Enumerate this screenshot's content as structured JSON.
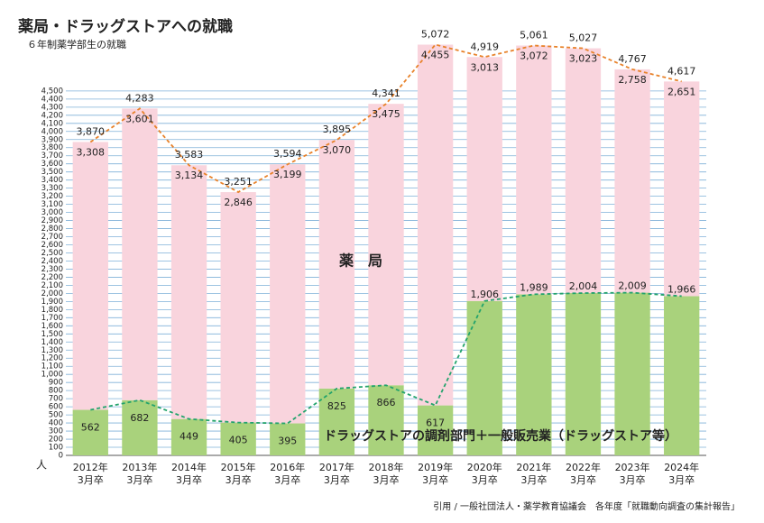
{
  "chart_data": {
    "type": "stacked_bar",
    "title": "薬局・ドラッグストアへの就職",
    "subtitle": "６年制薬学部生の就職",
    "ylabel": "人",
    "source": "引用 / 一般社団法人・薬学教育協議会　各年度「就職動向調査の集計報告」",
    "categories": [
      "2012年3月卒",
      "2013年3月卒",
      "2014年3月卒",
      "2015年3月卒",
      "2016年3月卒",
      "2017年3月卒",
      "2018年3月卒",
      "2019年3月卒",
      "2020年3月卒",
      "2021年3月卒",
      "2022年3月卒",
      "2023年3月卒",
      "2024年3月卒"
    ],
    "series": [
      {
        "name": "ドラッグストアの調剤部門＋一般販売業（ドラッグストア等）",
        "color": "#a9d27c",
        "line_color": "#23a36c",
        "values": [
          562,
          682,
          449,
          405,
          395,
          825,
          866,
          617,
          1906,
          1989,
          2004,
          2009,
          1966
        ],
        "value_labels": [
          "562",
          "682",
          "449",
          "405",
          "395",
          "825",
          "866",
          "617",
          "1,906",
          "1,989",
          "2,004",
          "2,009",
          "1,966"
        ]
      },
      {
        "name": "薬　局",
        "color": "#f9d4dd",
        "values": [
          3308,
          3601,
          3134,
          2846,
          3199,
          3070,
          3475,
          4455,
          3013,
          3072,
          3023,
          2758,
          2651
        ],
        "value_labels": [
          "3,308",
          "3,601",
          "3,134",
          "2,846",
          "3,199",
          "3,070",
          "3,475",
          "4,455",
          "3,013",
          "3,072",
          "3,023",
          "2,758",
          "2,651"
        ]
      }
    ],
    "totals": {
      "line_color": "#e8822a",
      "values": [
        3870,
        4283,
        3583,
        3251,
        3594,
        3895,
        4341,
        5072,
        4919,
        5061,
        5027,
        4767,
        4617
      ],
      "value_labels": [
        "3,870",
        "4,283",
        "3,583",
        "3,251",
        "3,594",
        "3,895",
        "4,341",
        "5,072",
        "4,919",
        "5,061",
        "5,027",
        "4,767",
        "4,617"
      ]
    },
    "ylim": [
      0,
      5100
    ],
    "yticks": [
      0,
      100,
      200,
      300,
      400,
      500,
      600,
      700,
      800,
      900,
      {
        "value": 1000,
        "label": "1,000"
      },
      {
        "value": 1100,
        "label": "1,100"
      },
      {
        "value": 1200,
        "label": "1,200"
      },
      {
        "value": 1300,
        "label": "1,300"
      },
      {
        "value": 1400,
        "label": "1,400"
      },
      {
        "value": 1500,
        "label": "1,500"
      },
      {
        "value": 1600,
        "label": "1,600"
      },
      {
        "value": 1700,
        "label": "1,700"
      },
      {
        "value": 1800,
        "label": "1,800"
      },
      {
        "value": 1900,
        "label": "1,900"
      },
      {
        "value": 2000,
        "label": "2,000"
      },
      {
        "value": 2100,
        "label": "2,100"
      },
      {
        "value": 2200,
        "label": "2,200"
      },
      {
        "value": 2300,
        "label": "2,300"
      },
      {
        "value": 2400,
        "label": "2,400"
      },
      {
        "value": 2500,
        "label": "2,500"
      },
      {
        "value": 2600,
        "label": "2,600"
      },
      {
        "value": 2700,
        "label": "2,700"
      },
      {
        "value": 2800,
        "label": "2,800"
      },
      {
        "value": 2900,
        "label": "2,900"
      },
      {
        "value": 3000,
        "label": "3,000"
      },
      {
        "value": 3100,
        "label": "3,100"
      },
      {
        "value": 3200,
        "label": "3,200"
      },
      {
        "value": 3300,
        "label": "3,300"
      },
      {
        "value": 3400,
        "label": "3,400"
      },
      {
        "value": 3500,
        "label": "3,500"
      },
      {
        "value": 3600,
        "label": "3,600"
      },
      {
        "value": 3700,
        "label": "3,700"
      },
      {
        "value": 3800,
        "label": "3,800"
      },
      {
        "value": 3900,
        "label": "3,900"
      },
      {
        "value": 4000,
        "label": "4,000"
      },
      {
        "value": 4100,
        "label": "4,100"
      },
      {
        "value": 4200,
        "label": "4,200"
      },
      {
        "value": 4300,
        "label": "4,300"
      },
      {
        "value": 4400,
        "label": "4,400"
      },
      {
        "value": 4500,
        "label": "4,500"
      }
    ],
    "grid": true
  }
}
